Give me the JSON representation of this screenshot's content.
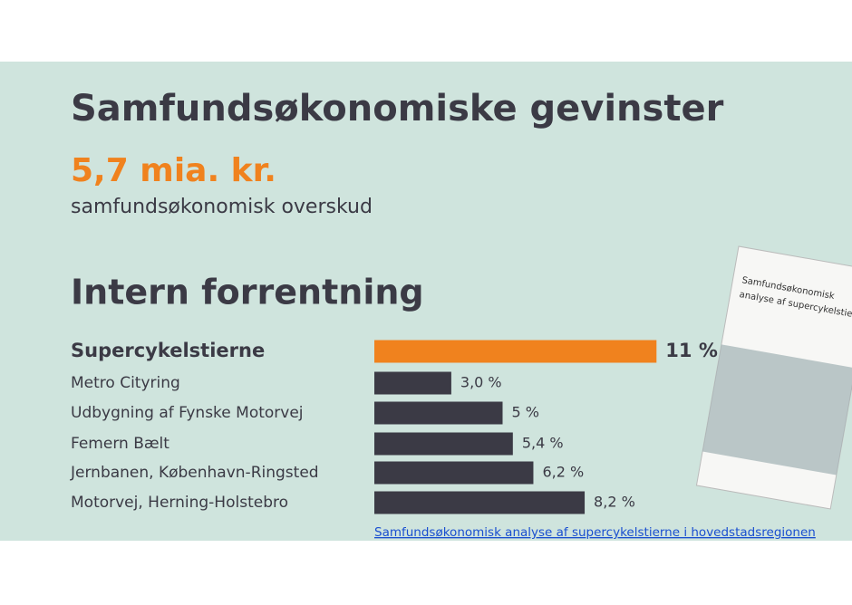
{
  "header": {
    "title": "Samfundsøkonomiske gevinster",
    "highlight": "5,7 mia. kr.",
    "subtitle": "samfundsøkonomisk overskud"
  },
  "chart_data": {
    "type": "bar",
    "orientation": "horizontal",
    "title": "Intern forrentning",
    "categories": [
      "Supercykelstierne",
      "Metro Cityring",
      "Udbygning af Fynske Motorvej",
      "Femern Bælt",
      "Jernbanen, København-Ringsted",
      "Motorvej, Herning-Holstebro"
    ],
    "values": [
      11,
      3.0,
      5,
      5.4,
      6.2,
      8.2
    ],
    "value_labels": [
      "11 %",
      "3,0 %",
      "5 %",
      "5,4 %",
      "6,2 %",
      "8,2 %"
    ],
    "colors": [
      "#f0821e",
      "#3b3a45",
      "#3b3a45",
      "#3b3a45",
      "#3b3a45",
      "#3b3a45"
    ]
  },
  "report": {
    "title_lines": [
      "Samfundsøkonomisk",
      "analyse af supercykelstierne"
    ]
  },
  "link": {
    "text": "Samfundsøkonomisk analyse af supercykelstierne i hovedstadsregionen"
  }
}
